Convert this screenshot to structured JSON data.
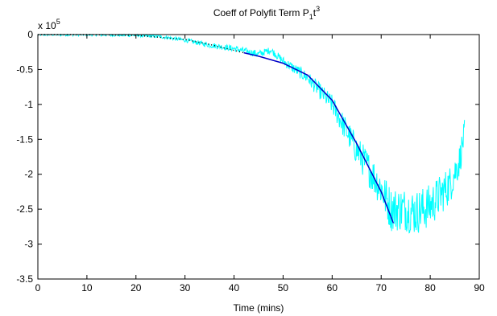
{
  "chart_data": {
    "type": "line",
    "title": "Coeff of Polyfit Term P",
    "title_sub": "1",
    "title_var": "t",
    "title_exp": "3",
    "xlabel": "Time (mins)",
    "ylabel": "",
    "exponent_base": "x 10",
    "exponent_power": "5",
    "xlim": [
      0,
      90
    ],
    "ylim": [
      -3.5,
      0
    ],
    "xticks": [
      "0",
      "10",
      "20",
      "30",
      "40",
      "50",
      "60",
      "70",
      "80",
      "90"
    ],
    "yticks": [
      "0",
      "-0.5",
      "-1",
      "-1.5",
      "-2",
      "-2.5",
      "-3",
      "-3.5"
    ],
    "grid": false,
    "legend": "none",
    "series": [
      {
        "style": "noisy",
        "color": "#00ffff",
        "x": [
          0,
          5,
          10,
          15,
          20,
          25,
          30,
          35,
          40,
          45,
          47.5,
          50,
          55,
          60,
          65,
          70,
          72,
          75,
          77,
          80,
          82,
          84,
          86,
          87
        ],
        "y": [
          0,
          0,
          0,
          -0.005,
          -0.01,
          -0.03,
          -0.08,
          -0.15,
          -0.2,
          -0.28,
          -0.22,
          -0.38,
          -0.62,
          -1.0,
          -1.65,
          -2.2,
          -2.5,
          -2.5,
          -2.55,
          -2.45,
          -2.3,
          -2.15,
          -1.8,
          -1.4
        ]
      },
      {
        "style": "solid",
        "color": "#0000c8",
        "x": [
          42,
          45,
          50,
          55,
          60,
          65,
          70,
          72.5
        ],
        "y": [
          -0.26,
          -0.31,
          -0.41,
          -0.58,
          -0.94,
          -1.56,
          -2.25,
          -2.7
        ]
      },
      {
        "style": "dotted",
        "color": "#000000",
        "x": [
          0,
          10,
          20,
          30,
          35,
          42
        ],
        "y": [
          0,
          0,
          -0.01,
          -0.07,
          -0.14,
          -0.26
        ]
      }
    ]
  }
}
